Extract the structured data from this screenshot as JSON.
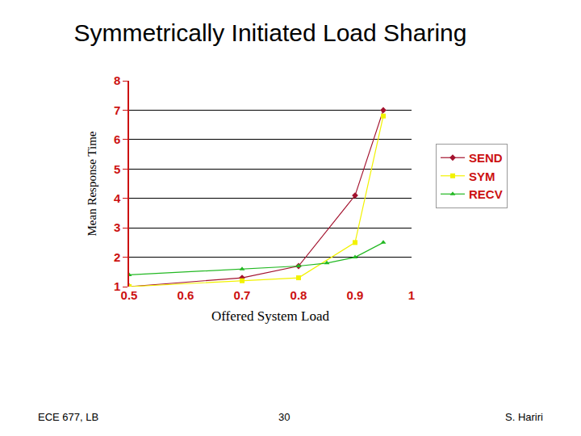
{
  "chart_data": {
    "type": "line",
    "title": "Symmetrically Initiated Load Sharing",
    "x_label": "Offered System Load",
    "y_label": "Mean Response Time",
    "xlim": [
      0.5,
      1
    ],
    "xticks": [
      0.5,
      0.6,
      0.7,
      0.8,
      0.9,
      1
    ],
    "ylim": [
      1,
      8
    ],
    "yticks": [
      1,
      2,
      3,
      4,
      5,
      6,
      7,
      8
    ],
    "grid": "y",
    "legend": "right",
    "series": [
      {
        "name": "SEND",
        "color": "#a3122e",
        "marker": "diamond",
        "x": [
          0.5,
          0.7,
          0.8,
          0.9,
          0.95
        ],
        "values": [
          1.0,
          1.3,
          1.7,
          4.1,
          7.0
        ]
      },
      {
        "name": "SYM",
        "color": "#f2f200",
        "marker": "square",
        "x": [
          0.5,
          0.7,
          0.8,
          0.9,
          0.95
        ],
        "values": [
          1.0,
          1.2,
          1.3,
          2.5,
          6.8
        ]
      },
      {
        "name": "RECV",
        "color": "#22b822",
        "marker": "triangle-up",
        "x": [
          0.5,
          0.7,
          0.8,
          0.85,
          0.9,
          0.95
        ],
        "values": [
          1.4,
          1.6,
          1.7,
          1.8,
          2.0,
          2.5
        ]
      }
    ],
    "annotations": [
      "ECE 677, LB",
      "30",
      "S. Hariri"
    ]
  }
}
